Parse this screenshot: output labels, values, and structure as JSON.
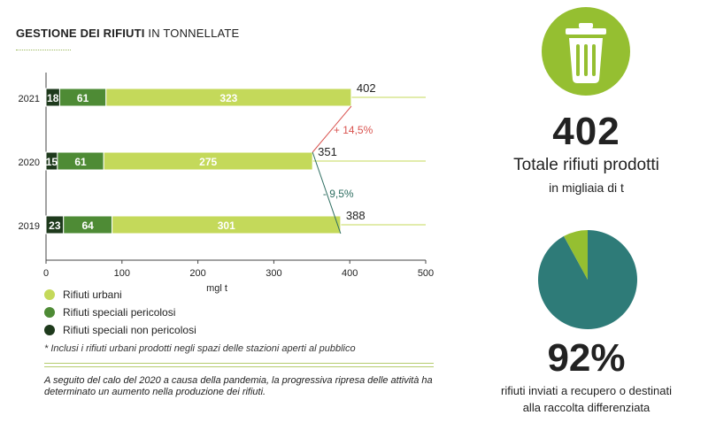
{
  "title": {
    "bold": "GESTIONE DEI RIFIUTI",
    "rest": "IN TONNELLATE"
  },
  "colors": {
    "urbani": "#c4d95a",
    "pericolosi": "#4e8b35",
    "non_pericolosi": "#1e3a1c",
    "increase": "#d9534f",
    "decrease": "#2e6e61",
    "trash": "#95bf31",
    "pie_main": "#2e7b78",
    "pie_small": "#95bf31"
  },
  "chart_data": {
    "type": "bar",
    "orientation": "horizontal",
    "stacked": true,
    "categories": [
      "2021",
      "2020",
      "2019"
    ],
    "series": [
      {
        "name": "Rifiuti speciali non pericolosi",
        "key": "non_pericolosi",
        "values": [
          18,
          15,
          23
        ]
      },
      {
        "name": "Rifiuti speciali pericolosi",
        "key": "pericolosi",
        "values": [
          61,
          61,
          64
        ]
      },
      {
        "name": "Rifiuti urbani",
        "key": "urbani",
        "values": [
          323,
          275,
          301
        ]
      }
    ],
    "totals": [
      402,
      351,
      388
    ],
    "xlabel": "mgl t",
    "xlim": [
      0,
      500
    ],
    "xticks": [
      0,
      100,
      200,
      300,
      400,
      500
    ],
    "changes": [
      {
        "from": "2020",
        "to": "2021",
        "label": "+ 14,5%",
        "direction": "up"
      },
      {
        "from": "2019",
        "to": "2020",
        "label": "- 9,5%",
        "direction": "down"
      }
    ]
  },
  "legend": [
    {
      "label": "Rifiuti urbani",
      "key": "urbani"
    },
    {
      "label": "Rifiuti speciali pericolosi",
      "key": "pericolosi"
    },
    {
      "label": "Rifiuti speciali non pericolosi",
      "key": "non_pericolosi"
    }
  ],
  "footnote": "* Inclusi i rifiuti urbani prodotti negli spazi delle stazioni aperti al pubblico",
  "note": "A seguito del calo del 2020 a causa della pandemia, la progressiva ripresa delle attività ha determinato un aumento nella produzione dei rifiuti.",
  "total": {
    "value": "402",
    "label": "Totale rifiuti prodotti",
    "unit": "in migliaia di t"
  },
  "recovery": {
    "percent_label": "92%",
    "percent_value": 92,
    "label_line1": "rifiuti inviati a recupero o destinati",
    "label_line2": "alla raccolta differenziata"
  }
}
